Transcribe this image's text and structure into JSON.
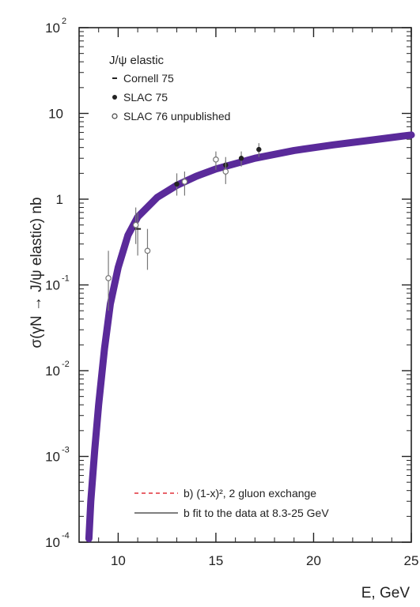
{
  "chart_data": {
    "type": "scatter",
    "xlabel": "E, GeV",
    "ylabel": "σ(γN → J/ψ elastic) nb",
    "xlim": [
      8,
      25
    ],
    "ylim": [
      0.0001,
      100
    ],
    "yscale": "log",
    "x_ticks": [
      {
        "value": 10,
        "label": "10"
      },
      {
        "value": 15,
        "label": "15"
      },
      {
        "value": 20,
        "label": "20"
      },
      {
        "value": 25,
        "label": "25"
      }
    ],
    "y_ticks": [
      {
        "value": 100,
        "base": "10",
        "exp": "2"
      },
      {
        "value": 10,
        "base": "10",
        "exp": ""
      },
      {
        "value": 1,
        "base": "1",
        "exp": ""
      },
      {
        "value": 0.1,
        "base": "10",
        "exp": "-1"
      },
      {
        "value": 0.01,
        "base": "10",
        "exp": "-2"
      },
      {
        "value": 0.001,
        "base": "10",
        "exp": "-3"
      },
      {
        "value": 0.0001,
        "base": "10",
        "exp": "-4"
      }
    ],
    "legend_title": "J/ψ elastic",
    "legend_placement": "top-left",
    "series": [
      {
        "name": "Cornell 75",
        "marker": "dash",
        "points": [
          {
            "x": 11.0,
            "y": 0.45,
            "yerr_lo": 0.22,
            "yerr_hi": 0.7
          }
        ]
      },
      {
        "name": "SLAC 75",
        "marker": "filled-circle",
        "points": [
          {
            "x": 13.0,
            "y": 1.5,
            "yerr_lo": 1.1,
            "yerr_hi": 2.0
          },
          {
            "x": 15.5,
            "y": 2.5,
            "yerr_lo": 1.9,
            "yerr_hi": 3.1
          },
          {
            "x": 16.3,
            "y": 3.0,
            "yerr_lo": 2.4,
            "yerr_hi": 3.6
          },
          {
            "x": 17.2,
            "y": 3.8,
            "yerr_lo": 3.1,
            "yerr_hi": 4.5
          }
        ]
      },
      {
        "name": "SLAC 76 unpublished",
        "marker": "open-circle",
        "points": [
          {
            "x": 9.5,
            "y": 0.12,
            "yerr_lo": 0.05,
            "yerr_hi": 0.25
          },
          {
            "x": 10.9,
            "y": 0.5,
            "yerr_lo": 0.3,
            "yerr_hi": 0.8
          },
          {
            "x": 11.5,
            "y": 0.25,
            "yerr_lo": 0.15,
            "yerr_hi": 0.45
          },
          {
            "x": 13.4,
            "y": 1.6,
            "yerr_lo": 1.1,
            "yerr_hi": 2.1
          },
          {
            "x": 15.0,
            "y": 2.9,
            "yerr_lo": 2.2,
            "yerr_hi": 3.6
          },
          {
            "x": 15.5,
            "y": 2.1,
            "yerr_lo": 1.5,
            "yerr_hi": 2.8
          }
        ]
      }
    ],
    "curves": [
      {
        "name": "b) (1-x)², 2 gluon exchange",
        "style": "dashed",
        "color": "#e0303a",
        "points": [
          [
            8.5,
            0.00011
          ],
          [
            8.6,
            0.0003
          ],
          [
            8.8,
            0.0012
          ],
          [
            9.0,
            0.004
          ],
          [
            9.3,
            0.018
          ],
          [
            9.6,
            0.06
          ],
          [
            10.0,
            0.16
          ],
          [
            10.5,
            0.38
          ],
          [
            11.0,
            0.62
          ],
          [
            12.0,
            1.05
          ],
          [
            13.0,
            1.45
          ],
          [
            14.0,
            1.85
          ],
          [
            15.0,
            2.25
          ],
          [
            17.0,
            3.0
          ],
          [
            19.0,
            3.7
          ],
          [
            21.0,
            4.3
          ],
          [
            23.0,
            4.9
          ],
          [
            25.0,
            5.6
          ]
        ]
      },
      {
        "name": "b fit to the data at 8.3-25 GeV",
        "style": "solid",
        "color": "#5a2a9a",
        "points": [
          [
            8.5,
            0.00011
          ],
          [
            8.6,
            0.0003
          ],
          [
            8.8,
            0.0012
          ],
          [
            9.0,
            0.004
          ],
          [
            9.3,
            0.018
          ],
          [
            9.6,
            0.06
          ],
          [
            10.0,
            0.16
          ],
          [
            10.5,
            0.38
          ],
          [
            11.0,
            0.62
          ],
          [
            12.0,
            1.05
          ],
          [
            13.0,
            1.45
          ],
          [
            14.0,
            1.85
          ],
          [
            15.0,
            2.25
          ],
          [
            17.0,
            3.0
          ],
          [
            19.0,
            3.7
          ],
          [
            21.0,
            4.3
          ],
          [
            23.0,
            4.9
          ],
          [
            25.0,
            5.6
          ]
        ]
      }
    ],
    "colors": {
      "fit_band": "#5a2a9a",
      "dashed_curve": "#e0303a",
      "solid_legend": "#555555",
      "data_points": "#777777",
      "axis": "#222222"
    }
  }
}
